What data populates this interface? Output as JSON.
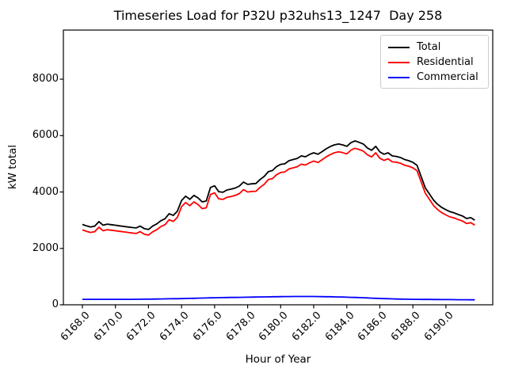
{
  "figure": {
    "background": "#ffffff",
    "axes_color": "#000000",
    "legend_border_color": "#cccccc"
  },
  "chart_data": {
    "type": "line",
    "title": "Timeseries Load for P32U p32uhs13_1247  Day 258",
    "xlabel": "Hour of Year",
    "ylabel": "kW total",
    "xlim": [
      6166.85,
      6192.85
    ],
    "ylim": [
      0,
      9740
    ],
    "grid": false,
    "legend_position": "upper right",
    "x_ticks": [
      6168,
      6170,
      6172,
      6174,
      6176,
      6178,
      6180,
      6182,
      6184,
      6186,
      6188,
      6190
    ],
    "x_tick_labels": [
      "6168.0",
      "6170.0",
      "6172.0",
      "6174.0",
      "6176.0",
      "6178.0",
      "6180.0",
      "6182.0",
      "6184.0",
      "6186.0",
      "6188.0",
      "6190.0"
    ],
    "y_ticks": [
      0,
      2000,
      4000,
      6000,
      8000
    ],
    "y_tick_labels": [
      "0",
      "2000",
      "4000",
      "6000",
      "8000"
    ],
    "x": [
      6168.0,
      6168.25,
      6168.5,
      6168.75,
      6169.0,
      6169.25,
      6169.5,
      6169.75,
      6170.0,
      6170.25,
      6170.5,
      6170.75,
      6171.0,
      6171.25,
      6171.5,
      6171.75,
      6172.0,
      6172.25,
      6172.5,
      6172.75,
      6173.0,
      6173.25,
      6173.5,
      6173.75,
      6174.0,
      6174.25,
      6174.5,
      6174.75,
      6175.0,
      6175.25,
      6175.5,
      6175.75,
      6176.0,
      6176.25,
      6176.5,
      6176.75,
      6177.0,
      6177.25,
      6177.5,
      6177.75,
      6178.0,
      6178.25,
      6178.5,
      6178.75,
      6179.0,
      6179.25,
      6179.5,
      6179.75,
      6180.0,
      6180.25,
      6180.5,
      6180.75,
      6181.0,
      6181.25,
      6181.5,
      6181.75,
      6182.0,
      6182.25,
      6182.5,
      6182.75,
      6183.0,
      6183.25,
      6183.5,
      6183.75,
      6184.0,
      6184.25,
      6184.5,
      6184.75,
      6185.0,
      6185.25,
      6185.5,
      6185.75,
      6186.0,
      6186.25,
      6186.5,
      6186.75,
      6187.0,
      6187.25,
      6187.5,
      6187.75,
      6188.0,
      6188.25,
      6188.5,
      6188.75,
      6189.0,
      6189.25,
      6189.5,
      6189.75,
      6190.0,
      6190.25,
      6190.5,
      6190.75,
      6191.0,
      6191.25,
      6191.5,
      6191.75
    ],
    "series": [
      {
        "name": "Total",
        "color": "#000000",
        "values": [
          2850,
          2800,
          2760,
          2790,
          2950,
          2820,
          2860,
          2840,
          2820,
          2800,
          2780,
          2760,
          2740,
          2725,
          2790,
          2700,
          2670,
          2790,
          2870,
          2980,
          3050,
          3230,
          3170,
          3320,
          3700,
          3850,
          3740,
          3880,
          3790,
          3650,
          3680,
          4160,
          4220,
          4010,
          3990,
          4070,
          4100,
          4140,
          4210,
          4350,
          4270,
          4290,
          4300,
          4440,
          4550,
          4720,
          4760,
          4900,
          4980,
          5000,
          5110,
          5150,
          5190,
          5280,
          5250,
          5330,
          5390,
          5340,
          5430,
          5530,
          5610,
          5670,
          5700,
          5670,
          5620,
          5750,
          5810,
          5760,
          5700,
          5560,
          5480,
          5620,
          5420,
          5340,
          5390,
          5280,
          5260,
          5220,
          5150,
          5110,
          5050,
          4950,
          4550,
          4150,
          3930,
          3710,
          3560,
          3450,
          3370,
          3300,
          3260,
          3200,
          3150,
          3060,
          3090,
          3000
        ]
      },
      {
        "name": "Residential",
        "color": "#ff0000",
        "values": [
          2655,
          2605,
          2565,
          2595,
          2755,
          2625,
          2665,
          2645,
          2625,
          2605,
          2585,
          2565,
          2545,
          2529,
          2593,
          2501,
          2470,
          2588,
          2665,
          2773,
          2840,
          3018,
          2955,
          3103,
          3480,
          3626,
          3513,
          3649,
          3555,
          3411,
          3438,
          3914,
          3970,
          3758,
          3735,
          3813,
          3840,
          3878,
          3945,
          4083,
          4000,
          4018,
          4025,
          4163,
          4270,
          4438,
          4475,
          4613,
          4690,
          4709,
          4818,
          4856,
          4895,
          4985,
          4955,
          5035,
          5095,
          5048,
          5140,
          5243,
          5325,
          5389,
          5423,
          5396,
          5350,
          5485,
          5550,
          5505,
          5450,
          5316,
          5243,
          5389,
          5195,
          5120,
          5175,
          5070,
          5055,
          5018,
          4950,
          4913,
          4855,
          4756,
          4358,
          3959,
          3740,
          3521,
          3373,
          3264,
          3185,
          3116,
          3078,
          3019,
          2970,
          2881,
          2913,
          2824
        ]
      },
      {
        "name": "Commercial",
        "color": "#0000ff",
        "values": [
          195,
          195,
          195,
          195,
          195,
          195,
          195,
          195,
          195,
          195,
          195,
          195,
          195,
          196,
          197,
          199,
          200,
          202,
          205,
          207,
          210,
          212,
          215,
          217,
          220,
          224,
          227,
          231,
          235,
          239,
          242,
          246,
          250,
          252,
          255,
          257,
          260,
          262,
          265,
          267,
          270,
          272,
          275,
          277,
          280,
          282,
          285,
          287,
          290,
          291,
          292,
          294,
          295,
          295,
          295,
          295,
          295,
          292,
          290,
          287,
          285,
          281,
          277,
          274,
          270,
          265,
          260,
          255,
          250,
          244,
          237,
          231,
          225,
          220,
          215,
          210,
          205,
          202,
          200,
          197,
          195,
          194,
          192,
          191,
          190,
          189,
          187,
          186,
          185,
          184,
          182,
          181,
          180,
          179,
          177,
          176
        ]
      }
    ]
  }
}
